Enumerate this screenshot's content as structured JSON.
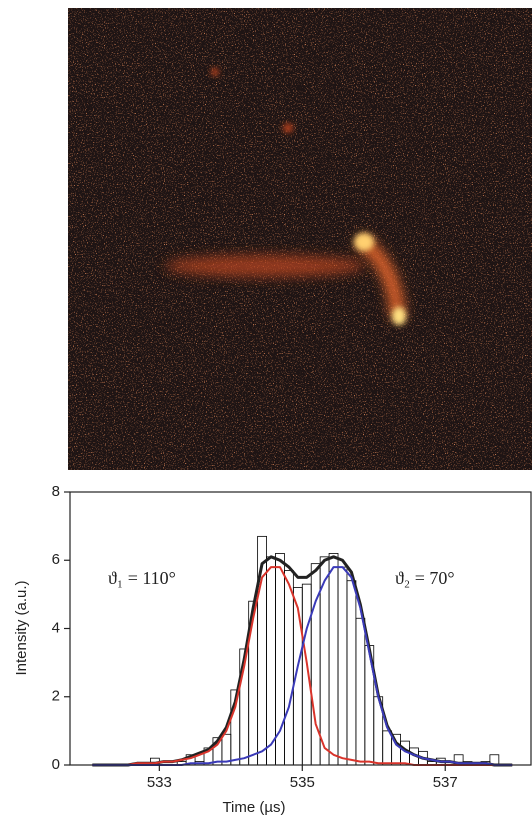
{
  "chart_data": {
    "type": "histogram",
    "xlabel": "Time (µs)",
    "ylabel": "Intensity (a.u.)",
    "xlim": [
      531.75,
      538.2
    ],
    "ylim": [
      0,
      8
    ],
    "xticks": [
      533,
      535,
      537
    ],
    "yticks": [
      0,
      2,
      4,
      6,
      8
    ],
    "color": "#000000",
    "bins": [
      532.0,
      532.125,
      532.25,
      532.375,
      532.5,
      532.625,
      532.75,
      532.875,
      533.0,
      533.125,
      533.25,
      533.375,
      533.5,
      533.625,
      533.75,
      533.875,
      534.0,
      534.125,
      534.25,
      534.375,
      534.5,
      534.625,
      534.75,
      534.875,
      535.0,
      535.125,
      535.25,
      535.375,
      535.5,
      535.625,
      535.75,
      535.875,
      536.0,
      536.125,
      536.25,
      536.375,
      536.5,
      536.625,
      536.75,
      536.875,
      537.0,
      537.125,
      537.25,
      537.375,
      537.5,
      537.625,
      537.75,
      537.875,
      538.0
    ],
    "counts": [
      0,
      0,
      0,
      0,
      0,
      0,
      0,
      0.2,
      0,
      0,
      0.1,
      0.3,
      0.1,
      0.5,
      0.8,
      0.9,
      2.2,
      3.4,
      4.8,
      6.7,
      6.1,
      6.2,
      5.7,
      5.2,
      5.3,
      5.9,
      6.1,
      6.2,
      5.8,
      5.4,
      4.3,
      3.5,
      2.0,
      1.0,
      0.9,
      0.7,
      0.5,
      0.4,
      0.1,
      0.2,
      0.1,
      0.3,
      0.1,
      0,
      0.1,
      0.3,
      0,
      0
    ],
    "x": [
      532.0625,
      532.1875,
      532.3125,
      532.4375,
      532.5625,
      532.6875,
      532.8125,
      532.9375,
      533.0625,
      533.1875,
      533.3125,
      533.4375,
      533.5625,
      533.6875,
      533.8125,
      533.9375,
      534.0625,
      534.1875,
      534.3125,
      534.4375,
      534.5625,
      534.6875,
      534.8125,
      534.9375,
      535.0625,
      535.1875,
      535.3125,
      535.4375,
      535.5625,
      535.6875,
      535.8125,
      535.9375,
      536.0625,
      536.1875,
      536.3125,
      536.4375,
      536.5625,
      536.6875,
      536.8125,
      536.9375,
      537.0625,
      537.1875,
      537.3125,
      537.4375,
      537.5625,
      537.6875,
      537.8125,
      537.9375
    ],
    "series": [
      {
        "color": "#222222",
        "values": [
          0,
          0,
          0,
          0,
          0,
          0.05,
          0.05,
          0.05,
          0.1,
          0.1,
          0.15,
          0.25,
          0.35,
          0.45,
          0.7,
          1.1,
          1.85,
          3.1,
          4.6,
          5.9,
          6.1,
          6.0,
          5.8,
          5.5,
          5.5,
          5.7,
          6.0,
          6.1,
          6.0,
          5.65,
          4.7,
          3.4,
          2.05,
          1.15,
          0.65,
          0.45,
          0.3,
          0.2,
          0.15,
          0.1,
          0.1,
          0.05,
          0.05,
          0.05,
          0.05,
          0,
          0,
          0
        ]
      },
      {
        "color": "#d9342b",
        "values": [
          0,
          0,
          0,
          0,
          0,
          0.05,
          0.05,
          0.05,
          0.1,
          0.1,
          0.15,
          0.2,
          0.3,
          0.4,
          0.6,
          1.0,
          1.7,
          2.9,
          4.3,
          5.5,
          5.8,
          5.8,
          5.3,
          4.6,
          3.0,
          1.2,
          0.5,
          0.3,
          0.2,
          0.15,
          0.1,
          0.1,
          0.05,
          0.05,
          0.05,
          0.05,
          0,
          0,
          0,
          0,
          0,
          0,
          0,
          0,
          0,
          0,
          0,
          0
        ]
      },
      {
        "color": "#3a3ab8",
        "values": [
          0,
          0,
          0,
          0,
          0,
          0,
          0,
          0,
          0,
          0,
          0,
          0.05,
          0.05,
          0.05,
          0.1,
          0.1,
          0.15,
          0.2,
          0.3,
          0.4,
          0.6,
          1.0,
          1.7,
          2.9,
          4.0,
          4.8,
          5.4,
          5.8,
          5.8,
          5.5,
          4.6,
          3.3,
          2.0,
          1.1,
          0.6,
          0.4,
          0.3,
          0.2,
          0.15,
          0.1,
          0.1,
          0.05,
          0.05,
          0.05,
          0.05,
          0,
          0,
          0
        ]
      }
    ],
    "annotations": [
      {
        "text": "ϑ₁ = 110°",
        "color": "#d9342b"
      },
      {
        "text": "ϑ₂ = 70°",
        "color": "#3a3ab8"
      }
    ]
  }
}
